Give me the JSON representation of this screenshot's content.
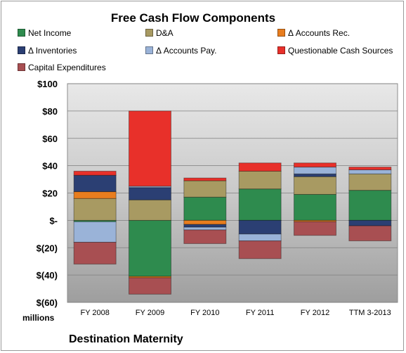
{
  "chart_data": {
    "type": "bar",
    "stacked": true,
    "title": "Free Cash Flow Components",
    "units_label": "millions",
    "source_label": "Destination Maternity",
    "categories": [
      "FY 2008",
      "FY 2009",
      "FY 2010",
      "FY 2011",
      "FY 2012",
      "TTM 3-2013"
    ],
    "ylim": [
      -60,
      100
    ],
    "y_ticks": [
      100,
      80,
      60,
      40,
      20,
      0,
      -20,
      -40,
      -60
    ],
    "y_tick_labels": [
      "$100",
      "$80",
      "$60",
      "$40",
      "$20",
      "$-",
      "$(20)",
      "$(40)",
      "$(60)"
    ],
    "legend_placement": "top",
    "series": [
      {
        "name": "Net Income",
        "color": "#2e8b4e",
        "values": [
          -1,
          -41,
          17,
          23,
          19,
          22
        ]
      },
      {
        "name": "D&A",
        "color": "#a89a62",
        "values": [
          16,
          15,
          12,
          13,
          13,
          12
        ]
      },
      {
        "name": "Δ Accounts Rec.",
        "color": "#e87d1e",
        "values": [
          5,
          -1,
          -3,
          0,
          -1,
          0
        ]
      },
      {
        "name": "Δ Inventories",
        "color": "#2b3f73",
        "values": [
          12,
          9,
          -2,
          -10,
          2,
          -4
        ]
      },
      {
        "name": "Δ Accounts Pay.",
        "color": "#9ab3d8",
        "values": [
          -15,
          1,
          -2,
          -5,
          5,
          3
        ]
      },
      {
        "name": "Questionable Cash Sources",
        "color": "#e8302a",
        "values": [
          3,
          55,
          2,
          6,
          3,
          2
        ]
      },
      {
        "name": "Capital Expenditures",
        "color": "#a84f52",
        "values": [
          -16,
          -12,
          -10,
          -13,
          -10,
          -11
        ]
      }
    ]
  }
}
